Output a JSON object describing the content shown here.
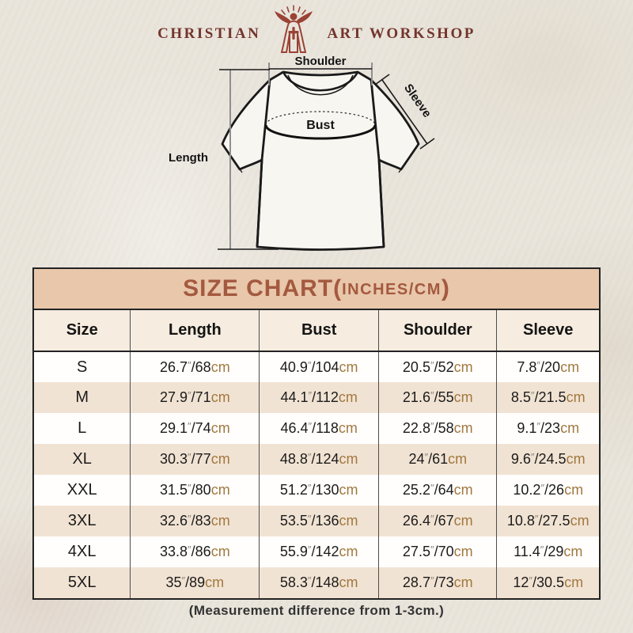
{
  "logo": {
    "left_text": "CHRISTIAN",
    "right_text": "ART WORKSHOP",
    "icon": "jesus-with-raised-arms-icon",
    "text_color": "#74342c",
    "icon_color": "#9a4335"
  },
  "diagram": {
    "labels": {
      "shoulder": "Shoulder",
      "sleeve": "Sleeve",
      "bust": "Bust",
      "length": "Length"
    }
  },
  "chart_data": {
    "type": "table",
    "title": "SIZE CHART(INCHES/CM)",
    "title_parts": {
      "main": "SIZE CHART(",
      "small": "INCHES/CM",
      "close": ")"
    },
    "columns": [
      "Size",
      "Length",
      "Bust",
      "Shoulder",
      "Sleeve"
    ],
    "rows": [
      {
        "size": "S",
        "length": "26.7″/68cm",
        "bust": "40.9″/104cm",
        "shoulder": "20.5″/52cm",
        "sleeve": "7.8″/20cm"
      },
      {
        "size": "M",
        "length": "27.9″/71cm",
        "bust": "44.1″/112cm",
        "shoulder": "21.6″/55cm",
        "sleeve": "8.5″/21.5cm"
      },
      {
        "size": "L",
        "length": "29.1″/74cm",
        "bust": "46.4″/118cm",
        "shoulder": "22.8″/58cm",
        "sleeve": "9.1″/23cm"
      },
      {
        "size": "XL",
        "length": "30.3″/77cm",
        "bust": "48.8″/124cm",
        "shoulder": "24″/61cm",
        "sleeve": "9.6″/24.5cm"
      },
      {
        "size": "XXL",
        "length": "31.5″/80cm",
        "bust": "51.2″/130cm",
        "shoulder": "25.2″/64cm",
        "sleeve": "10.2″/26cm"
      },
      {
        "size": "3XL",
        "length": "32.6″/83cm",
        "bust": "53.5″/136cm",
        "shoulder": "26.4″/67cm",
        "sleeve": "10.8″/27.5cm"
      },
      {
        "size": "4XL",
        "length": "33.8″/86cm",
        "bust": "55.9″/142cm",
        "shoulder": "27.5″/70cm",
        "sleeve": "11.4″/29cm"
      },
      {
        "size": "5XL",
        "length": "35″/89cm",
        "bust": "58.3″/148cm",
        "shoulder": "28.7″/73cm",
        "sleeve": "12″/30.5cm"
      }
    ],
    "layout": {
      "header_bg": "#e8c7ab",
      "stripe_bg": "#f1e3d3",
      "title_color": "#a4593f",
      "cm_color": "#a1783f"
    }
  },
  "footer": {
    "note": "(Measurement difference from 1-3cm.)"
  }
}
